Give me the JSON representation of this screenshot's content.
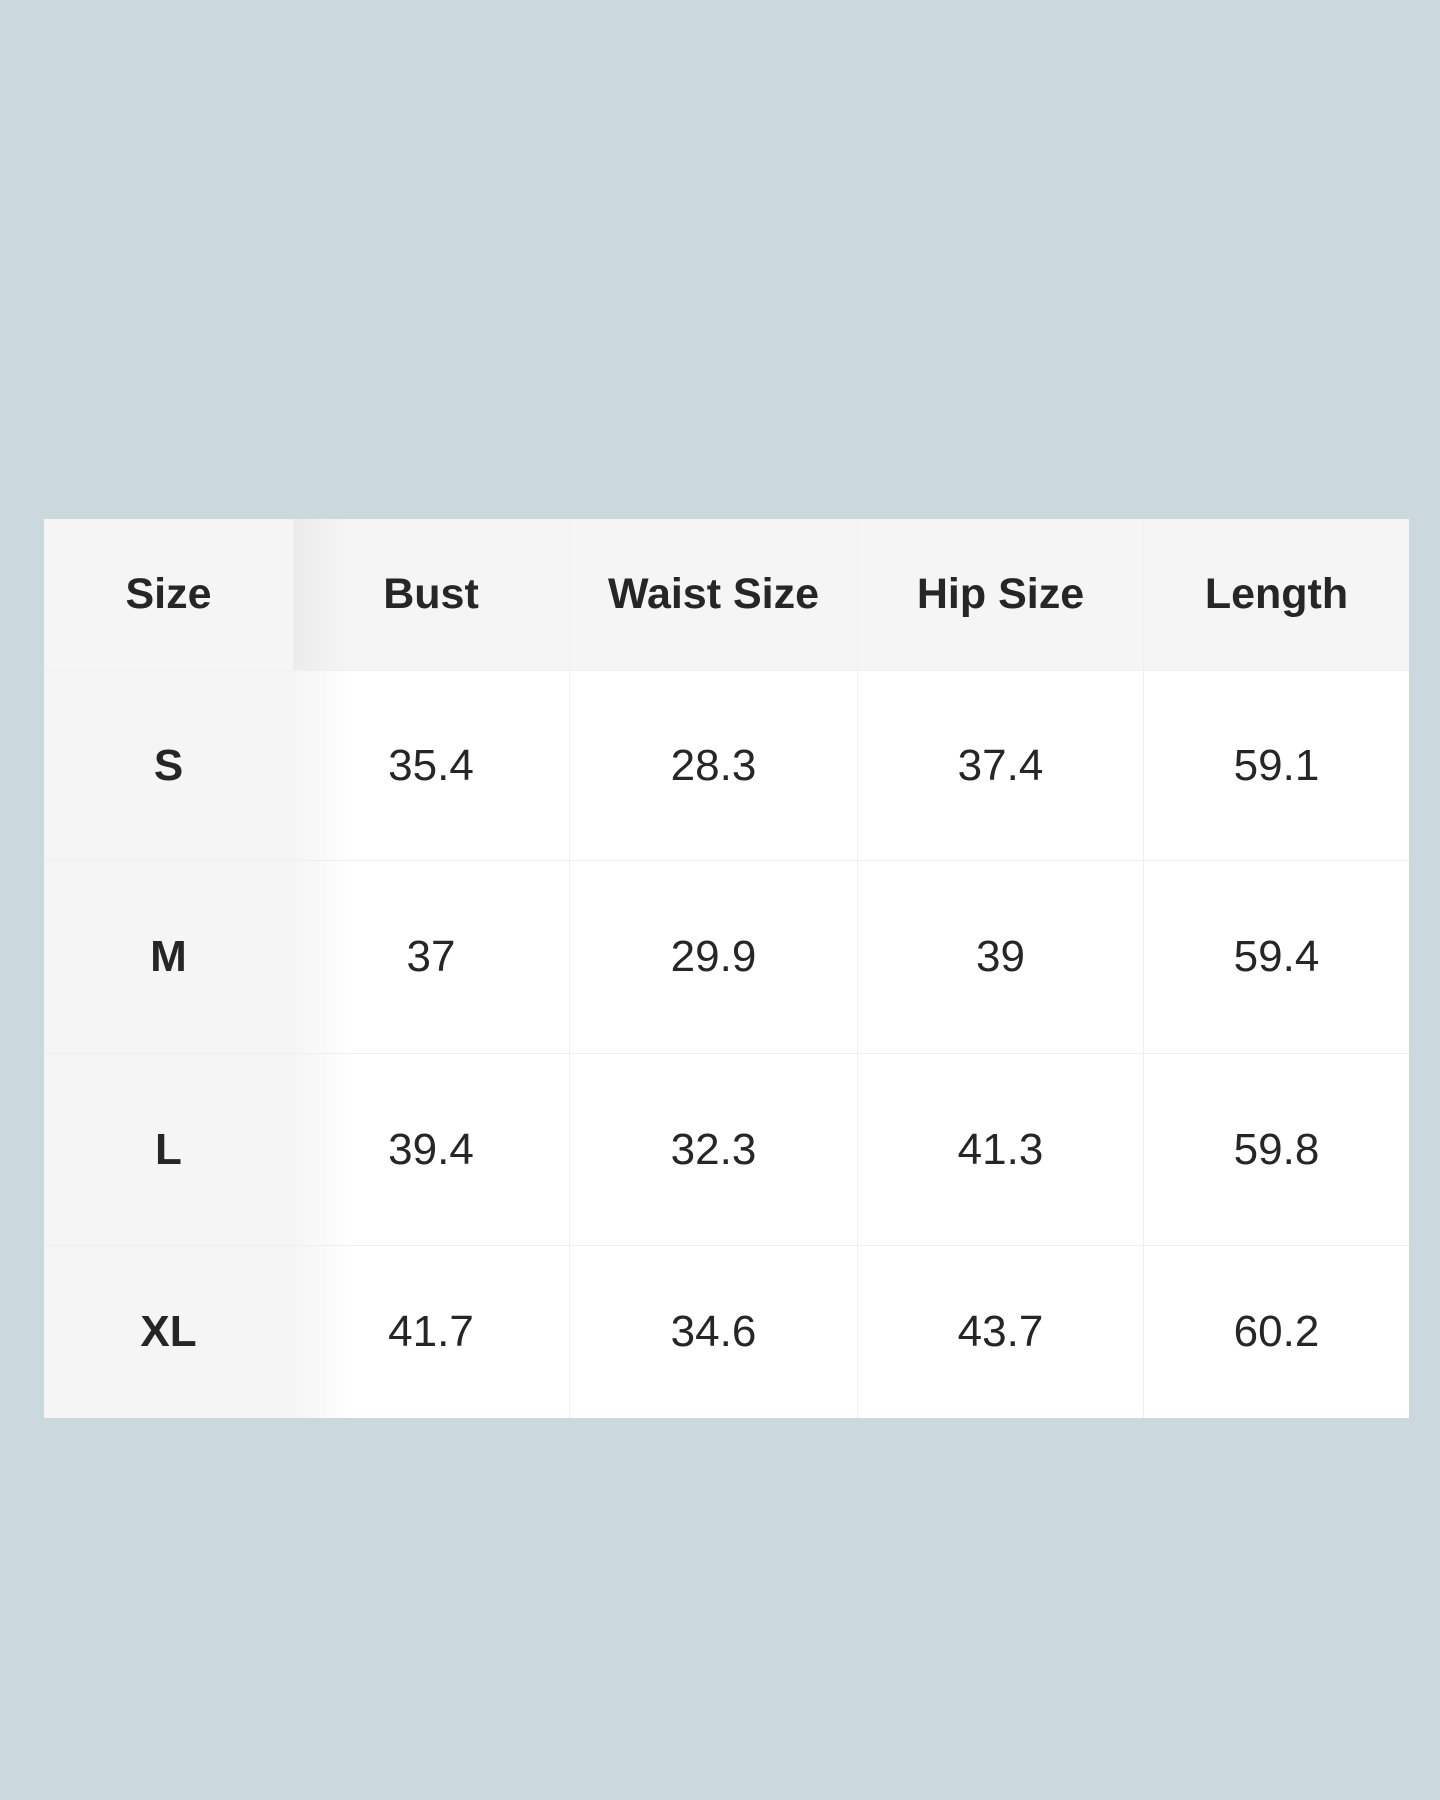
{
  "size_chart": {
    "headers": [
      "Size",
      "Bust",
      "Waist Size",
      "Hip Size",
      "Length"
    ],
    "rows": [
      [
        "S",
        "35.4",
        "28.3",
        "37.4",
        "59.1"
      ],
      [
        "M",
        "37",
        "29.9",
        "39",
        "59.4"
      ],
      [
        "L",
        "39.4",
        "32.3",
        "41.3",
        "59.8"
      ],
      [
        "XL",
        "41.7",
        "34.6",
        "43.7",
        "60.2"
      ]
    ]
  }
}
